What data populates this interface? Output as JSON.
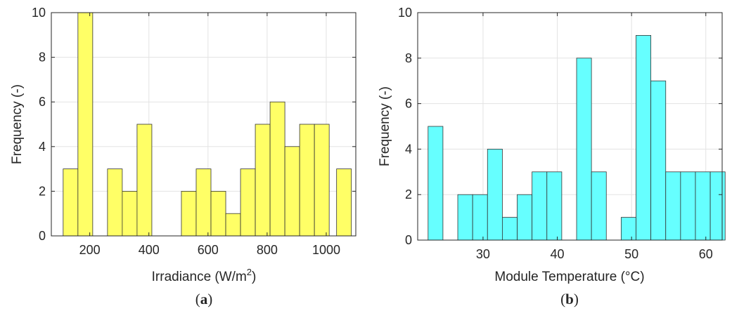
{
  "chart_data": [
    {
      "type": "bar",
      "variant": "histogram",
      "panel_label": "a",
      "xlabel": "Irradiance (W/m",
      "xlabel_sup": "2",
      "xlabel_tail": ")",
      "ylabel": "Frequency (-)",
      "xlim": [
        70,
        1100
      ],
      "ylim": [
        0,
        10
      ],
      "xticks": [
        200,
        400,
        600,
        800,
        1000
      ],
      "yticks": [
        0,
        2,
        4,
        6,
        8,
        10
      ],
      "grid": true,
      "bar_color": "#ffff66",
      "edge_color": "#333333",
      "bins": [
        {
          "x0": 110,
          "x1": 160,
          "count": 3
        },
        {
          "x0": 160,
          "x1": 210,
          "count": 10
        },
        {
          "x0": 260,
          "x1": 310,
          "count": 3
        },
        {
          "x0": 310,
          "x1": 360,
          "count": 2
        },
        {
          "x0": 360,
          "x1": 410,
          "count": 5
        },
        {
          "x0": 510,
          "x1": 560,
          "count": 2
        },
        {
          "x0": 560,
          "x1": 610,
          "count": 3
        },
        {
          "x0": 610,
          "x1": 660,
          "count": 2
        },
        {
          "x0": 660,
          "x1": 710,
          "count": 1
        },
        {
          "x0": 710,
          "x1": 760,
          "count": 3
        },
        {
          "x0": 760,
          "x1": 810,
          "count": 5
        },
        {
          "x0": 810,
          "x1": 860,
          "count": 6
        },
        {
          "x0": 860,
          "x1": 910,
          "count": 4
        },
        {
          "x0": 910,
          "x1": 960,
          "count": 5
        },
        {
          "x0": 960,
          "x1": 1010,
          "count": 5
        },
        {
          "x0": 1035,
          "x1": 1085,
          "count": 3
        }
      ]
    },
    {
      "type": "bar",
      "variant": "histogram",
      "panel_label": "b",
      "xlabel": "Module Temperature (°C)",
      "ylabel": "Frequency (-)",
      "xlim": [
        21.2,
        62.2
      ],
      "ylim": [
        0,
        10
      ],
      "xticks": [
        30,
        40,
        50,
        60
      ],
      "yticks": [
        0,
        2,
        4,
        6,
        8,
        10
      ],
      "grid": true,
      "bar_color": "#66ffff",
      "edge_color": "#333333",
      "bins": [
        {
          "x0": 22.6,
          "x1": 24.6,
          "count": 5
        },
        {
          "x0": 26.6,
          "x1": 28.6,
          "count": 2
        },
        {
          "x0": 28.6,
          "x1": 30.6,
          "count": 2
        },
        {
          "x0": 30.6,
          "x1": 32.6,
          "count": 4
        },
        {
          "x0": 32.6,
          "x1": 34.6,
          "count": 1
        },
        {
          "x0": 34.6,
          "x1": 36.6,
          "count": 2
        },
        {
          "x0": 36.6,
          "x1": 38.6,
          "count": 3
        },
        {
          "x0": 38.6,
          "x1": 40.6,
          "count": 3
        },
        {
          "x0": 42.6,
          "x1": 44.6,
          "count": 8
        },
        {
          "x0": 44.6,
          "x1": 46.6,
          "count": 3
        },
        {
          "x0": 48.6,
          "x1": 50.6,
          "count": 1
        },
        {
          "x0": 50.6,
          "x1": 52.6,
          "count": 9
        },
        {
          "x0": 52.6,
          "x1": 54.6,
          "count": 7
        },
        {
          "x0": 54.6,
          "x1": 56.6,
          "count": 3
        },
        {
          "x0": 56.6,
          "x1": 58.6,
          "count": 3
        },
        {
          "x0": 58.6,
          "x1": 60.6,
          "count": 3
        },
        {
          "x0": 60.6,
          "x1": 62.6,
          "count": 3
        }
      ]
    }
  ]
}
